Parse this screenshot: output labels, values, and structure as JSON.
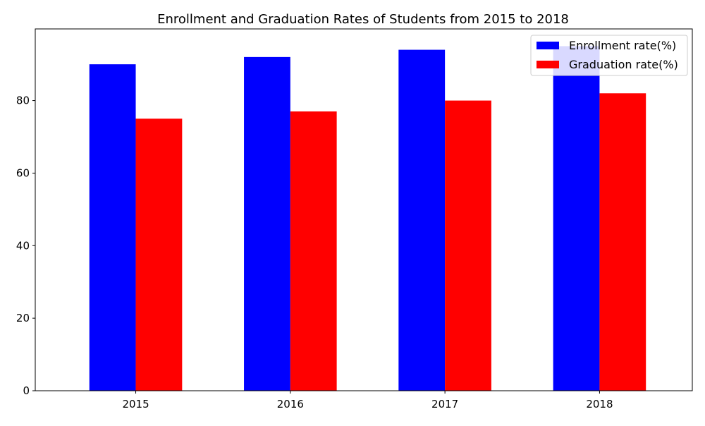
{
  "chart_data": {
    "type": "bar",
    "title": "Enrollment and Graduation Rates of Students from 2015 to 2018",
    "xlabel": "",
    "ylabel": "",
    "categories": [
      "2015",
      "2016",
      "2017",
      "2018"
    ],
    "series": [
      {
        "name": "Enrollment rate(%)",
        "values": [
          90,
          92,
          94,
          95
        ],
        "color": "#0000ff"
      },
      {
        "name": "Graduation rate(%)",
        "values": [
          75,
          77,
          80,
          82
        ],
        "color": "#ff0000"
      }
    ],
    "ylim": [
      0,
      99.75
    ],
    "yticks": [
      0,
      20,
      40,
      60,
      80
    ],
    "grid": false,
    "legend_position": "top-right"
  }
}
